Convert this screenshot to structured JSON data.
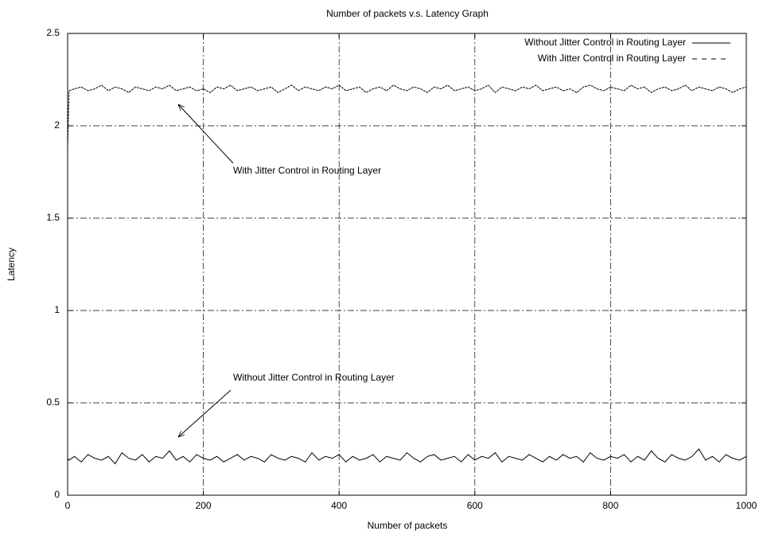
{
  "chart_data": {
    "type": "line",
    "title": "Number of packets v.s. Latency Graph",
    "x_label": "Number of packets",
    "y_label": "Latency",
    "xlim": [
      0,
      1000
    ],
    "ylim": [
      0,
      2.5
    ],
    "xticks": [
      0,
      200,
      400,
      600,
      800,
      1000
    ],
    "yticks": [
      0,
      0.5,
      1,
      1.5,
      2,
      2.5
    ],
    "grid": true,
    "legend": "upper right",
    "annotations": [
      "With Jitter Control in Routing Layer",
      "Without Jitter Control in Routing Layer"
    ],
    "x": [
      0,
      2,
      10,
      20,
      30,
      40,
      50,
      60,
      70,
      80,
      90,
      100,
      110,
      120,
      130,
      140,
      150,
      160,
      170,
      180,
      190,
      200,
      210,
      220,
      230,
      240,
      250,
      260,
      270,
      280,
      290,
      300,
      310,
      320,
      330,
      340,
      350,
      360,
      370,
      380,
      390,
      400,
      410,
      420,
      430,
      440,
      450,
      460,
      470,
      480,
      490,
      500,
      510,
      520,
      530,
      540,
      550,
      560,
      570,
      580,
      590,
      600,
      610,
      620,
      630,
      640,
      650,
      660,
      670,
      680,
      690,
      700,
      710,
      720,
      730,
      740,
      750,
      760,
      770,
      780,
      790,
      800,
      810,
      820,
      830,
      840,
      850,
      860,
      870,
      880,
      890,
      900,
      910,
      920,
      930,
      940,
      950,
      960,
      970,
      980,
      990,
      1000
    ],
    "series": [
      {
        "name": "Without Jitter Control in Routing Layer",
        "color": "#000000",
        "dash": "solid",
        "values": [
          0.2,
          0.19,
          0.21,
          0.18,
          0.22,
          0.2,
          0.19,
          0.21,
          0.17,
          0.23,
          0.2,
          0.19,
          0.22,
          0.18,
          0.21,
          0.2,
          0.24,
          0.19,
          0.21,
          0.18,
          0.22,
          0.2,
          0.19,
          0.21,
          0.18,
          0.2,
          0.22,
          0.19,
          0.21,
          0.2,
          0.18,
          0.22,
          0.2,
          0.19,
          0.21,
          0.2,
          0.18,
          0.23,
          0.19,
          0.21,
          0.2,
          0.22,
          0.18,
          0.21,
          0.19,
          0.2,
          0.22,
          0.18,
          0.21,
          0.2,
          0.19,
          0.23,
          0.2,
          0.18,
          0.21,
          0.22,
          0.19,
          0.2,
          0.21,
          0.18,
          0.22,
          0.19,
          0.21,
          0.2,
          0.23,
          0.18,
          0.21,
          0.2,
          0.19,
          0.22,
          0.2,
          0.18,
          0.21,
          0.19,
          0.22,
          0.2,
          0.21,
          0.18,
          0.23,
          0.2,
          0.19,
          0.21,
          0.2,
          0.22,
          0.18,
          0.21,
          0.19,
          0.24,
          0.2,
          0.18,
          0.22,
          0.2,
          0.19,
          0.21,
          0.25,
          0.19,
          0.21,
          0.18,
          0.22,
          0.2,
          0.19,
          0.21
        ]
      },
      {
        "name": "With Jitter Control in Routing Layer",
        "color": "#000000",
        "dash": "dashed",
        "values": [
          1.88,
          2.19,
          2.2,
          2.21,
          2.19,
          2.2,
          2.22,
          2.19,
          2.21,
          2.2,
          2.18,
          2.21,
          2.2,
          2.19,
          2.21,
          2.2,
          2.22,
          2.19,
          2.2,
          2.21,
          2.19,
          2.2,
          2.18,
          2.21,
          2.2,
          2.22,
          2.19,
          2.2,
          2.21,
          2.19,
          2.2,
          2.21,
          2.18,
          2.2,
          2.22,
          2.19,
          2.21,
          2.2,
          2.19,
          2.21,
          2.2,
          2.22,
          2.19,
          2.2,
          2.21,
          2.18,
          2.2,
          2.21,
          2.19,
          2.22,
          2.2,
          2.19,
          2.21,
          2.2,
          2.18,
          2.21,
          2.2,
          2.22,
          2.19,
          2.2,
          2.21,
          2.19,
          2.2,
          2.22,
          2.18,
          2.21,
          2.2,
          2.19,
          2.21,
          2.2,
          2.22,
          2.19,
          2.2,
          2.21,
          2.19,
          2.2,
          2.18,
          2.21,
          2.22,
          2.2,
          2.19,
          2.21,
          2.2,
          2.19,
          2.22,
          2.2,
          2.21,
          2.18,
          2.2,
          2.21,
          2.19,
          2.2,
          2.22,
          2.19,
          2.21,
          2.2,
          2.19,
          2.21,
          2.2,
          2.18,
          2.2,
          2.21
        ]
      }
    ]
  }
}
